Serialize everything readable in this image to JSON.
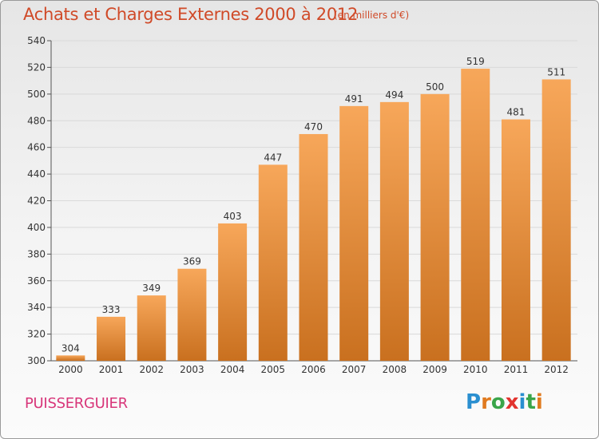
{
  "title": "Achats et Charges Externes 2000 à 2012",
  "subtitle": "(en milliers d'€)",
  "commune": "PUISSERGUIER",
  "logo": {
    "letters": [
      "P",
      "r",
      "o",
      "x",
      "i",
      "t",
      "i"
    ],
    "colors": [
      "#2a8fd0",
      "#e07a1f",
      "#3aa54a",
      "#e2342f",
      "#2a8fd0",
      "#3aa54a",
      "#e07a1f"
    ]
  },
  "colors": {
    "bar_light": "#f7a75a",
    "bar_dark": "#c9701f",
    "title": "#d04a28",
    "commune": "#d8367a"
  },
  "chart_data": {
    "type": "bar",
    "categories": [
      "2000",
      "2001",
      "2002",
      "2003",
      "2004",
      "2005",
      "2006",
      "2007",
      "2008",
      "2009",
      "2010",
      "2011",
      "2012"
    ],
    "values": [
      304,
      333,
      349,
      369,
      403,
      447,
      470,
      491,
      494,
      500,
      519,
      481,
      511
    ],
    "ylim": [
      300,
      540
    ],
    "yticks": [
      300,
      320,
      340,
      360,
      380,
      400,
      420,
      440,
      460,
      480,
      500,
      520,
      540
    ],
    "grid": true
  }
}
